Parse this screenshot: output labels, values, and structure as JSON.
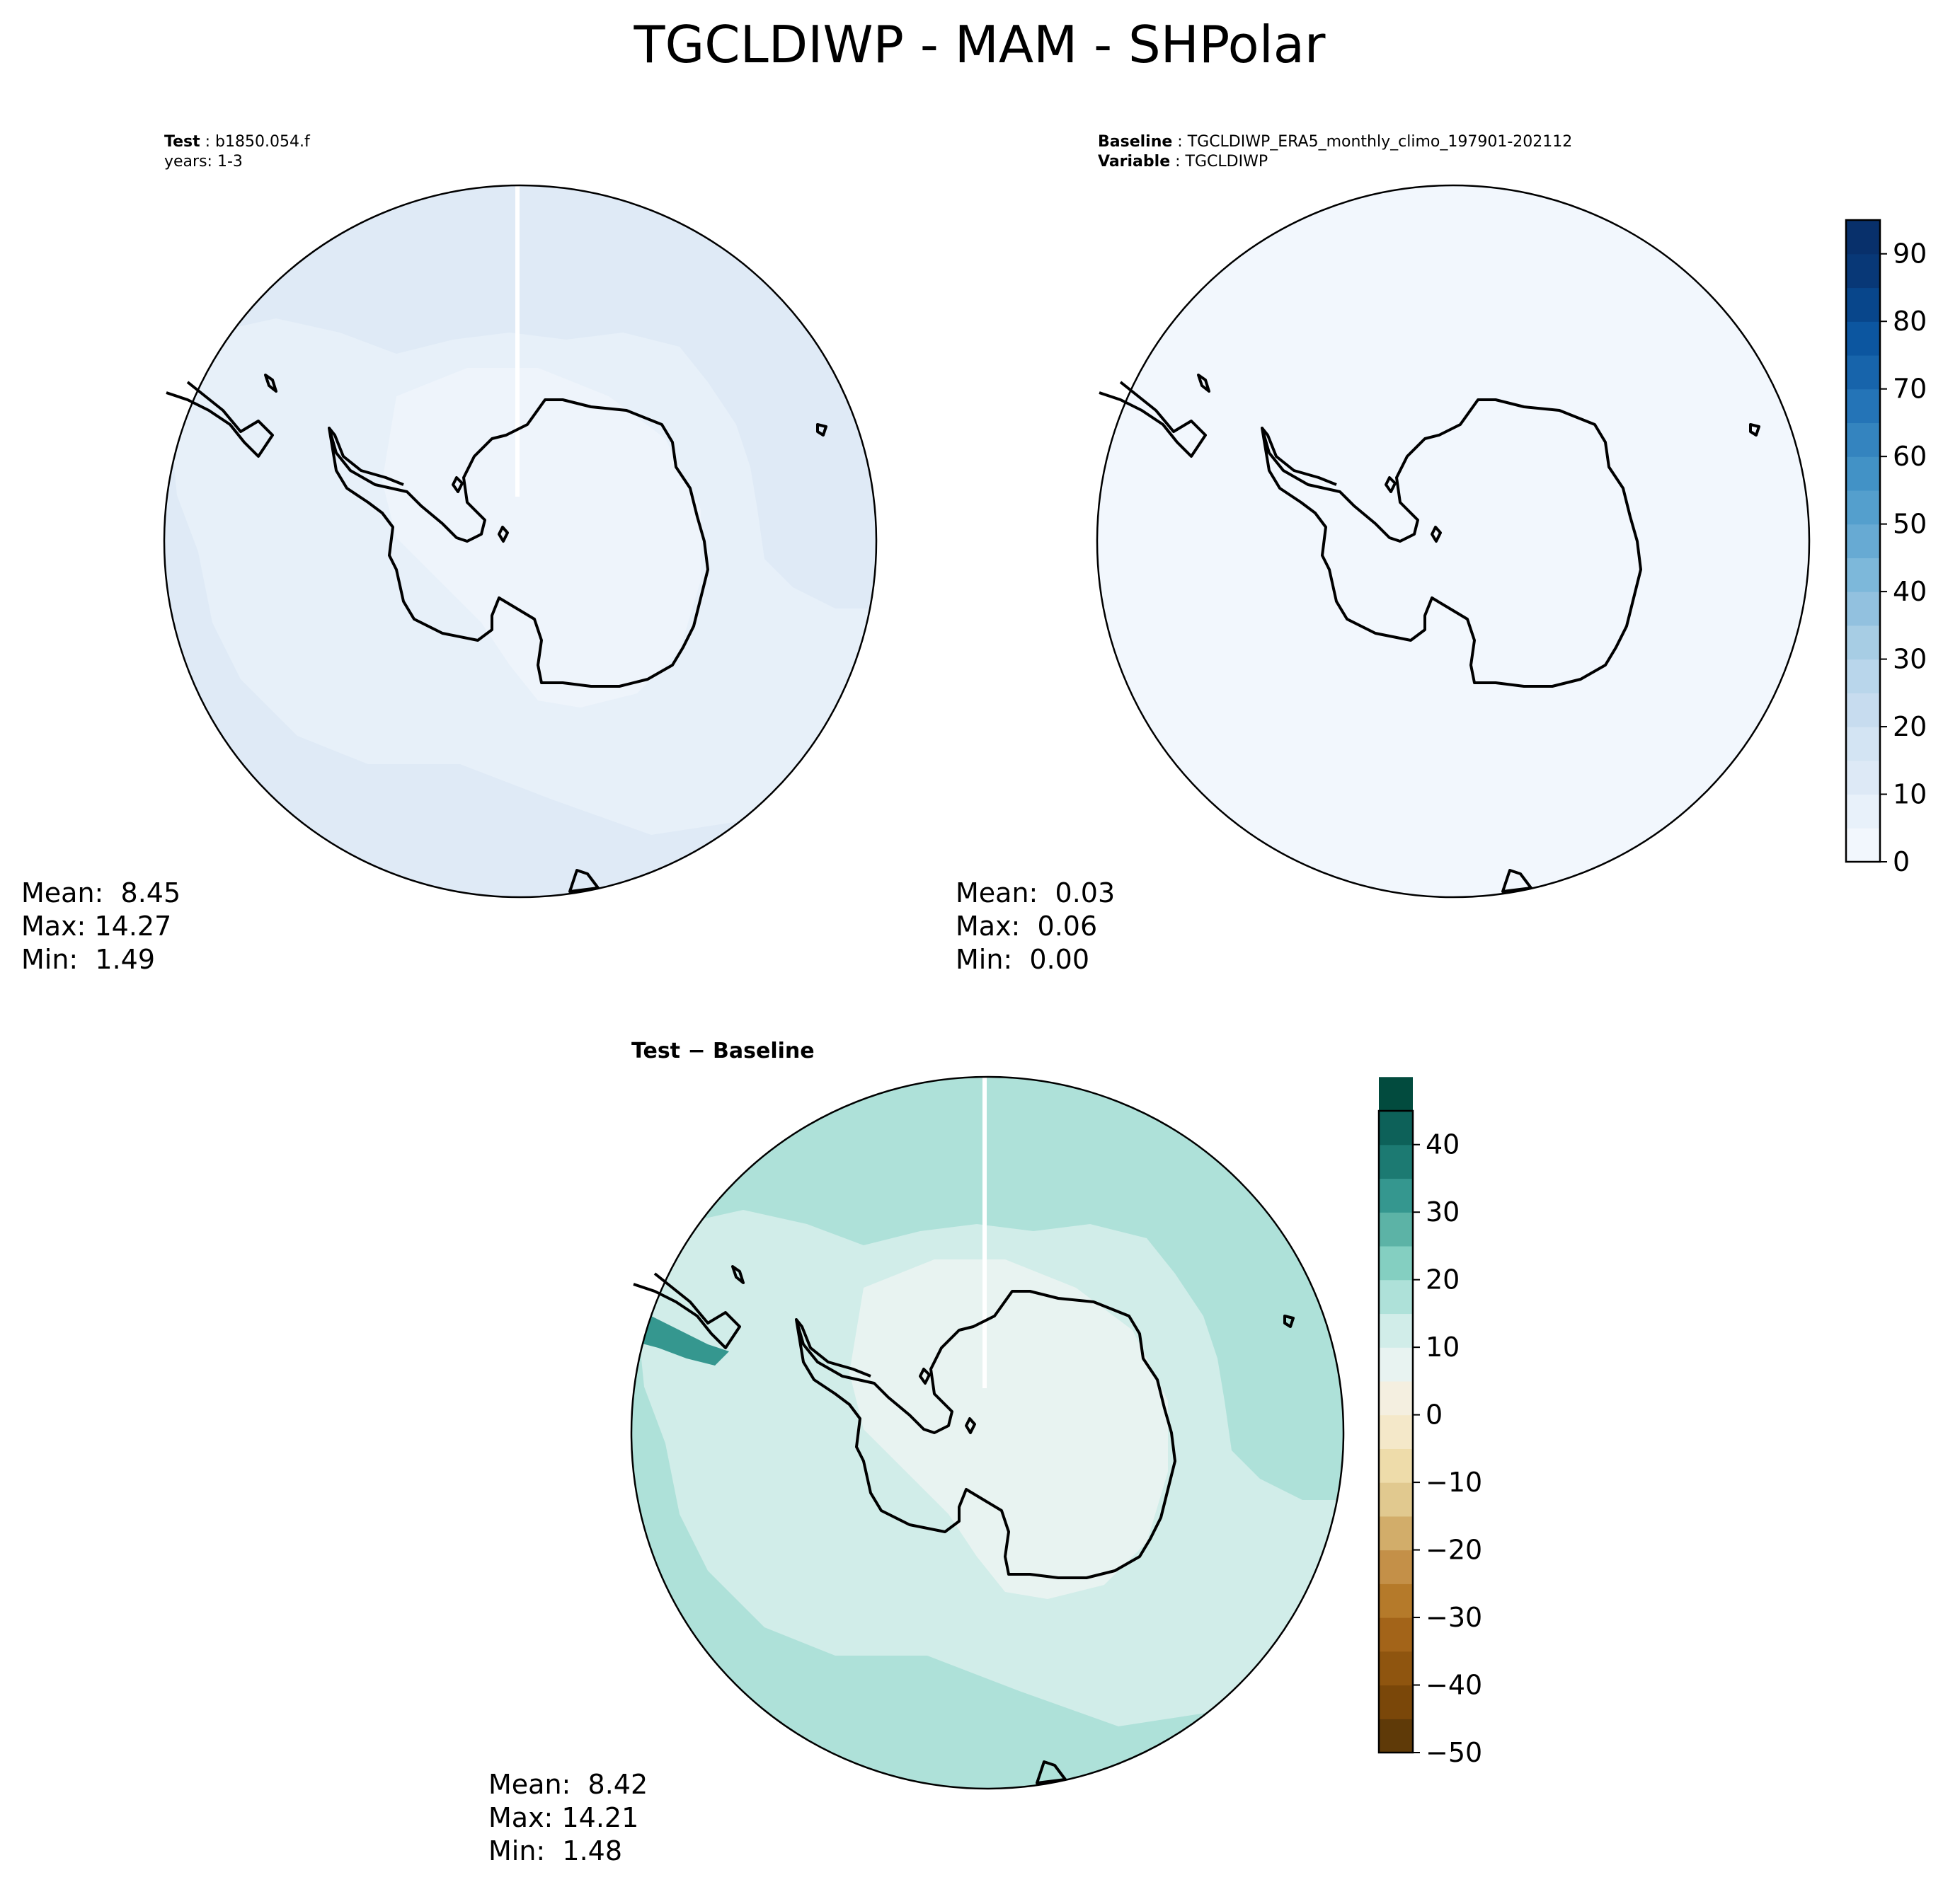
{
  "figure": {
    "title": "TGCLDIWP - MAM - SHPolar"
  },
  "chart_data": [
    {
      "type": "heatmap",
      "panel": "test",
      "projection": "South Polar Stereographic",
      "title_lines": [
        {
          "key": "Test",
          "value": "b1850.054.f"
        },
        {
          "key": "",
          "value": "years: 1-3"
        }
      ],
      "stats": {
        "mean": "8.45",
        "max": "14.27",
        "min": "1.49"
      },
      "stats_labels": {
        "mean": "Mean:",
        "max": "Max:",
        "min": "Min:"
      },
      "levels": [
        0,
        5,
        10
      ],
      "colormap": "Blues"
    },
    {
      "type": "heatmap",
      "panel": "baseline",
      "projection": "South Polar Stereographic",
      "title_lines": [
        {
          "key": "Baseline",
          "value": "TGCLDIWP_ERA5_monthly_climo_197901-202112"
        },
        {
          "key": "Variable",
          "value": "TGCLDIWP"
        }
      ],
      "stats": {
        "mean": "0.03",
        "max": "0.06",
        "min": "0.00"
      },
      "stats_labels": {
        "mean": "Mean:",
        "max": "Max:",
        "min": "Min:"
      },
      "levels": [
        0
      ],
      "colormap": "Blues",
      "colorbar": {
        "range": [
          0,
          95
        ],
        "step": 5,
        "ticks": [
          0,
          10,
          20,
          30,
          40,
          50,
          60,
          70,
          80,
          90
        ],
        "colors": [
          "#f2f7fd",
          "#e8f1fa",
          "#dde9f6",
          "#d3e4f3",
          "#c7dcef",
          "#b9d6eb",
          "#a7cde4",
          "#92c1df",
          "#7db8da",
          "#67aad3",
          "#549fcd",
          "#4292c6",
          "#3484bf",
          "#2474b7",
          "#1764ab",
          "#0c56a0",
          "#08468b",
          "#083877",
          "#08306b"
        ]
      }
    },
    {
      "type": "heatmap",
      "panel": "difference",
      "projection": "South Polar Stereographic",
      "title": "Test − Baseline",
      "stats": {
        "mean": "8.42",
        "max": "14.21",
        "min": "1.48"
      },
      "stats_labels": {
        "mean": "Mean:",
        "max": "Max:",
        "min": "Min:"
      },
      "levels": [
        0,
        5,
        10
      ],
      "colormap": "BrBG",
      "colorbar": {
        "range": [
          -50,
          45
        ],
        "step": 5,
        "ticks": [
          -50,
          -40,
          -30,
          -20,
          -10,
          0,
          10,
          20,
          30,
          40
        ],
        "colors": [
          "#5f3a08",
          "#7a4709",
          "#8f550f",
          "#a36419",
          "#b57a2a",
          "#c49048",
          "#d2ad6a",
          "#e1c98f",
          "#eedcaa",
          "#f4e8c9",
          "#f4efe0",
          "#e8f3f1",
          "#d1ede9",
          "#aee1d9",
          "#84cfc1",
          "#5cb3a6",
          "#35978f",
          "#1c7a72",
          "#0d6159",
          "#024b3e"
        ]
      }
    }
  ]
}
